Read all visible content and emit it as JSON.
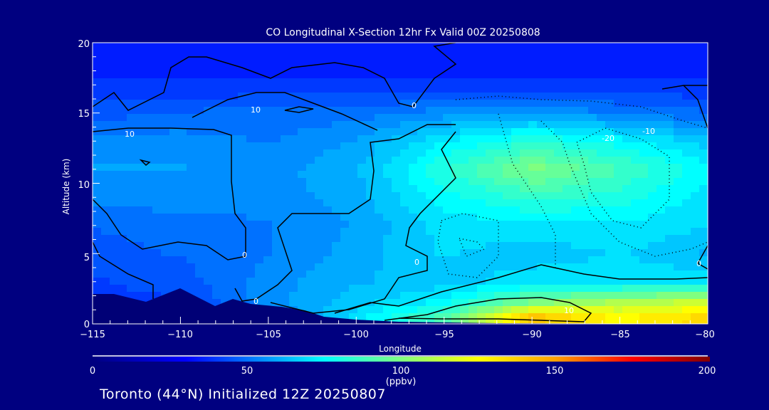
{
  "chart_data": {
    "type": "heatmap",
    "title": "CO Longitudinal X-Section 12hr  Fx Valid 00Z 20250808",
    "xlabel": "Longitude",
    "ylabel": "Altitude (km)",
    "xlim": [
      -115,
      -80
    ],
    "ylim": [
      0,
      20
    ],
    "xticks": [
      -115,
      -110,
      -105,
      -100,
      -95,
      -90,
      -85,
      -80
    ],
    "xtick_labels": [
      "−115",
      "−110",
      "−105",
      "−100",
      "−95",
      "−90",
      "−85",
      "−80"
    ],
    "yticks": [
      0,
      5,
      10,
      15,
      20
    ],
    "ytick_labels": [
      "0",
      "5",
      "10",
      "15",
      "20"
    ],
    "grid": false,
    "field": {
      "units": "ppbv",
      "lon": [
        -115,
        -110,
        -105,
        -100,
        -95,
        -90,
        -85,
        -80
      ],
      "alt": [
        0.5,
        1.5,
        3,
        5,
        7,
        9,
        11,
        13,
        15,
        17,
        19
      ],
      "values": [
        [
          40,
          40,
          50,
          70,
          90,
          140,
          125,
          135
        ],
        [
          40,
          42,
          55,
          65,
          75,
          100,
          110,
          115
        ],
        [
          42,
          45,
          55,
          62,
          65,
          70,
          70,
          72
        ],
        [
          45,
          48,
          52,
          60,
          68,
          65,
          68,
          62
        ],
        [
          48,
          50,
          52,
          58,
          70,
          70,
          72,
          68
        ],
        [
          55,
          55,
          55,
          60,
          75,
          85,
          80,
          70
        ],
        [
          58,
          58,
          55,
          62,
          82,
          100,
          88,
          75
        ],
        [
          55,
          55,
          52,
          58,
          72,
          82,
          75,
          65
        ],
        [
          45,
          48,
          50,
          50,
          55,
          58,
          52,
          48
        ],
        [
          38,
          38,
          38,
          38,
          38,
          38,
          38,
          38
        ],
        [
          35,
          35,
          35,
          35,
          35,
          35,
          35,
          35
        ]
      ]
    },
    "contour_labels": [
      "10",
      "10",
      "0",
      "0",
      "0",
      "0",
      "10",
      "-10",
      "-20",
      "0"
    ],
    "colorbar": {
      "label": "(ppbv)",
      "range": [
        0,
        200
      ],
      "ticks": [
        "0",
        "50",
        "100",
        "150",
        "200"
      ],
      "colors": [
        "#00007f",
        "#0000ff",
        "#00ffff",
        "#80ff80",
        "#ffff00",
        "#ffa000",
        "#ff0000",
        "#800000"
      ],
      "stops": [
        0,
        30,
        75,
        100,
        125,
        150,
        175,
        200
      ]
    }
  },
  "footer": {
    "subtitle": "Toronto (44°N) Initialized 12Z 20250807"
  },
  "colors": {
    "background": "#000080",
    "terrain": "#000076"
  }
}
